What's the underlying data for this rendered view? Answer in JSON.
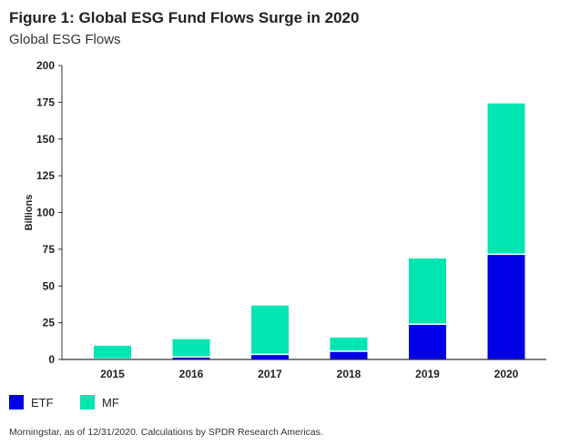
{
  "chart_data": {
    "type": "bar",
    "stacked": true,
    "title": "Figure 1: Global ESG Fund Flows Surge in 2020",
    "subtitle": "Global ESG Flows",
    "ylabel": "Billions",
    "xlabel": "",
    "ylim": [
      0,
      200
    ],
    "yticks": [
      0,
      25,
      50,
      75,
      100,
      125,
      150,
      175,
      200
    ],
    "grid": false,
    "legend": "bottom-left",
    "categories": [
      "2015",
      "2016",
      "2017",
      "2018",
      "2019",
      "2020"
    ],
    "series": [
      {
        "name": "ETF",
        "color": "#0000e6",
        "values": [
          0.3,
          1.7,
          3.5,
          5.6,
          24,
          71.6
        ]
      },
      {
        "name": "MF",
        "color": "#00e6b2",
        "values": [
          9.0,
          12.1,
          33.2,
          9.3,
          44.7,
          102.6
        ]
      }
    ],
    "source": "Morningstar, as of 12/31/2020. Calculations by SPDR Research Americas."
  }
}
